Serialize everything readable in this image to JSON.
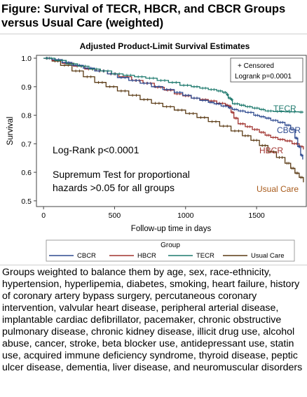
{
  "figure": {
    "title": "Figure: Survival of TECR, HBCR, and CBCR Groups versus Usual Care (weighted)",
    "caption": "Groups weighted to balance them by age, sex, race-ethnicity, hypertension, hyperlipemia, diabetes, smoking, heart failure, history of coronary artery bypass surgery, percutaneous coronary intervention, valvular heart disease, peripheral arterial disease, implantable cardiac defibrillator, pacemaker, chronic obstructive pulmonary disease, chronic kidney disease, illicit drug use, alcohol abuse, cancer, stroke, beta blocker use, antidepressant use, statin use, acquired immune deficiency syndrome, thyroid disease, peptic ulcer disease, dementia, liver disease, and neuromuscular disorders"
  },
  "chart_data": {
    "type": "line",
    "title": "Adjusted Product-Limit Survival Estimates",
    "xlabel": "Follow-up time in days",
    "ylabel": "Survival",
    "xlim": [
      -50,
      1850
    ],
    "ylim": [
      0.48,
      1.01
    ],
    "xticks": [
      0,
      500,
      1000,
      1500
    ],
    "yticks": [
      0.5,
      0.6,
      0.7,
      0.8,
      0.9,
      1.0
    ],
    "tick_labels_x": [
      "0",
      "500",
      "1000",
      "1500"
    ],
    "tick_labels_y": [
      "0.5",
      "0.6",
      "0.7",
      "0.8",
      "0.9",
      "1.0"
    ],
    "grid": false,
    "inset_legend": {
      "censored_label": "+ Censored",
      "logrank_label": "Logrank p=0.0001"
    },
    "annotations": {
      "logrank_text": "Log-Rank p<0.0001",
      "supremum_line1": "Supremum Test for proportional",
      "supremum_line2": "hazards >0.05 for all groups"
    },
    "legend": {
      "title": "Group",
      "position": "bottom"
    },
    "series": [
      {
        "name": "CBCR",
        "end_label": "CBCR",
        "color": "#2E4A8F",
        "points": [
          [
            0,
            1.0
          ],
          [
            60,
            0.995
          ],
          [
            130,
            0.985
          ],
          [
            200,
            0.975
          ],
          [
            280,
            0.965
          ],
          [
            360,
            0.955
          ],
          [
            450,
            0.945
          ],
          [
            520,
            0.932
          ],
          [
            600,
            0.922
          ],
          [
            680,
            0.912
          ],
          [
            760,
            0.9
          ],
          [
            840,
            0.89
          ],
          [
            920,
            0.88
          ],
          [
            980,
            0.87
          ],
          [
            1040,
            0.86
          ],
          [
            1100,
            0.852
          ],
          [
            1160,
            0.845
          ],
          [
            1200,
            0.84
          ],
          [
            1250,
            0.832
          ],
          [
            1300,
            0.826
          ],
          [
            1330,
            0.82
          ],
          [
            1370,
            0.815
          ],
          [
            1420,
            0.81
          ],
          [
            1480,
            0.8
          ],
          [
            1520,
            0.795
          ],
          [
            1560,
            0.79
          ],
          [
            1600,
            0.782
          ],
          [
            1650,
            0.775
          ],
          [
            1700,
            0.765
          ],
          [
            1740,
            0.75
          ],
          [
            1770,
            0.72
          ],
          [
            1790,
            0.69
          ],
          [
            1810,
            0.66
          ],
          [
            1825,
            0.645
          ]
        ]
      },
      {
        "name": "HBCR",
        "end_label": "HBCR",
        "color": "#A0332F",
        "points": [
          [
            0,
            1.0
          ],
          [
            60,
            0.992
          ],
          [
            130,
            0.982
          ],
          [
            210,
            0.972
          ],
          [
            290,
            0.962
          ],
          [
            370,
            0.955
          ],
          [
            450,
            0.945
          ],
          [
            530,
            0.935
          ],
          [
            620,
            0.922
          ],
          [
            700,
            0.912
          ],
          [
            780,
            0.898
          ],
          [
            850,
            0.888
          ],
          [
            920,
            0.875
          ],
          [
            980,
            0.868
          ],
          [
            1040,
            0.86
          ],
          [
            1100,
            0.855
          ],
          [
            1160,
            0.85
          ],
          [
            1220,
            0.842
          ],
          [
            1280,
            0.835
          ],
          [
            1300,
            0.832
          ],
          [
            1320,
            0.81
          ],
          [
            1340,
            0.79
          ],
          [
            1370,
            0.77
          ],
          [
            1420,
            0.76
          ],
          [
            1470,
            0.75
          ],
          [
            1520,
            0.74
          ],
          [
            1560,
            0.73
          ],
          [
            1600,
            0.722
          ],
          [
            1650,
            0.715
          ],
          [
            1700,
            0.71
          ],
          [
            1750,
            0.7
          ],
          [
            1800,
            0.69
          ],
          [
            1830,
            0.68
          ]
        ]
      },
      {
        "name": "TECR",
        "end_label": "TECR",
        "color": "#1F7A6E",
        "points": [
          [
            0,
            1.0
          ],
          [
            80,
            0.992
          ],
          [
            160,
            0.98
          ],
          [
            240,
            0.972
          ],
          [
            320,
            0.962
          ],
          [
            400,
            0.955
          ],
          [
            480,
            0.945
          ],
          [
            560,
            0.94
          ],
          [
            640,
            0.935
          ],
          [
            720,
            0.93
          ],
          [
            800,
            0.922
          ],
          [
            880,
            0.915
          ],
          [
            960,
            0.905
          ],
          [
            1040,
            0.9
          ],
          [
            1100,
            0.895
          ],
          [
            1160,
            0.89
          ],
          [
            1220,
            0.885
          ],
          [
            1260,
            0.88
          ],
          [
            1290,
            0.872
          ],
          [
            1300,
            0.86
          ],
          [
            1320,
            0.855
          ],
          [
            1330,
            0.84
          ],
          [
            1380,
            0.835
          ],
          [
            1420,
            0.83
          ],
          [
            1470,
            0.825
          ],
          [
            1520,
            0.82
          ],
          [
            1560,
            0.815
          ],
          [
            1620,
            0.813
          ],
          [
            1700,
            0.812
          ],
          [
            1800,
            0.811
          ],
          [
            1830,
            0.811
          ]
        ]
      },
      {
        "name": "Usual Care",
        "end_label": "Usual Care",
        "color": "#5A3A14",
        "points": [
          [
            0,
            1.0
          ],
          [
            60,
            0.99
          ],
          [
            120,
            0.975
          ],
          [
            200,
            0.955
          ],
          [
            280,
            0.935
          ],
          [
            360,
            0.915
          ],
          [
            440,
            0.9
          ],
          [
            520,
            0.885
          ],
          [
            600,
            0.87
          ],
          [
            680,
            0.855
          ],
          [
            760,
            0.842
          ],
          [
            840,
            0.83
          ],
          [
            920,
            0.818
          ],
          [
            1000,
            0.806
          ],
          [
            1080,
            0.792
          ],
          [
            1160,
            0.778
          ],
          [
            1240,
            0.762
          ],
          [
            1320,
            0.745
          ],
          [
            1400,
            0.728
          ],
          [
            1460,
            0.712
          ],
          [
            1520,
            0.694
          ],
          [
            1580,
            0.672
          ],
          [
            1640,
            0.652
          ],
          [
            1700,
            0.632
          ],
          [
            1740,
            0.614
          ],
          [
            1770,
            0.597
          ],
          [
            1800,
            0.582
          ],
          [
            1830,
            0.565
          ]
        ]
      }
    ]
  }
}
